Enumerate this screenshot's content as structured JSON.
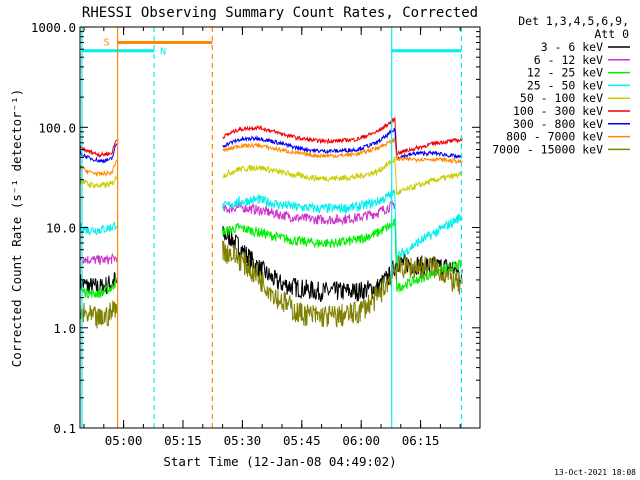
{
  "chart_data": {
    "type": "line",
    "title": "RHESSI Observing Summary Count Rates, Corrected",
    "xlabel": "Start Time (12-Jan-08 04:49:02)",
    "ylabel": "Corrected Count Rate (s⁻¹ detector⁻¹)",
    "x_unit": "minutes after 04:49:02",
    "xlim": [
      0,
      101
    ],
    "ylim": [
      0.1,
      1000
    ],
    "yscale": "log",
    "x_ticks": [
      {
        "t": 11,
        "label": "05:00"
      },
      {
        "t": 26,
        "label": "05:15"
      },
      {
        "t": 41,
        "label": "05:30"
      },
      {
        "t": 56,
        "label": "05:45"
      },
      {
        "t": 71,
        "label": "06:00"
      },
      {
        "t": 86,
        "label": "06:15"
      }
    ],
    "y_ticks": [
      {
        "v": 0.1,
        "label": "0.1"
      },
      {
        "v": 1,
        "label": "1.0"
      },
      {
        "v": 10,
        "label": "10.0"
      },
      {
        "v": 100,
        "label": "100.0"
      },
      {
        "v": 1000,
        "label": "1000.0"
      }
    ],
    "legend_title": [
      "Det 1,3,4,5,6,9,",
      "Att 0"
    ],
    "legend_position": "right",
    "data_gap": [
      9.5,
      36
    ],
    "series": [
      {
        "name": "3 - 6 keV",
        "color": "#000000",
        "jitter": 0.1,
        "x": [
          0,
          2,
          5,
          8,
          8.8,
          9.3,
          36,
          38,
          40,
          45,
          50,
          55,
          60,
          65,
          70,
          75,
          78,
          80,
          82,
          86,
          90,
          94,
          96.5
        ],
        "y": [
          2.8,
          2.6,
          2.5,
          2.8,
          3.0,
          2.8,
          8.5,
          8,
          6.5,
          4,
          2.8,
          2.5,
          2.3,
          2.3,
          2.3,
          2.5,
          3.2,
          4.5,
          4.4,
          4.2,
          4.1,
          4.0,
          3.2
        ]
      },
      {
        "name": "6 - 12 keV",
        "color": "#cc33cc",
        "jitter": 0.05,
        "x": [
          0,
          2,
          5,
          8,
          9.3,
          36,
          40,
          45,
          50,
          55,
          60,
          65,
          70,
          75,
          79.5
        ],
        "y": [
          5,
          4.8,
          4.7,
          4.8,
          5.0,
          15,
          16,
          15,
          13.5,
          12.5,
          12,
          12,
          12.5,
          14,
          17
        ]
      },
      {
        "name": "12 - 25 keV",
        "color": "#00ee00",
        "jitter": 0.05,
        "x": [
          0,
          2,
          5,
          8,
          9.3,
          36,
          40,
          45,
          50,
          55,
          60,
          65,
          70,
          75,
          79.5,
          80,
          85,
          90,
          96.5
        ],
        "y": [
          2.4,
          2.2,
          2.2,
          2.5,
          3.0,
          9,
          10,
          9,
          8,
          7.3,
          7,
          7,
          7.5,
          8.8,
          11,
          2.5,
          3.0,
          3.6,
          4.3
        ]
      },
      {
        "name": "25 - 50 keV",
        "color": "#00eeee",
        "jitter": 0.05,
        "x": [
          0,
          2,
          5,
          8,
          9.3,
          36,
          40,
          45,
          50,
          55,
          60,
          65,
          70,
          75,
          79.5,
          80,
          85,
          90,
          96.5
        ],
        "y": [
          10,
          9.5,
          9.5,
          10,
          11,
          16,
          18,
          19,
          17,
          16,
          15.5,
          15.5,
          16,
          18,
          22,
          5,
          7,
          9,
          13
        ]
      },
      {
        "name": "50 - 100 keV",
        "color": "#cccc00",
        "jitter": 0.03,
        "x": [
          0,
          2,
          5,
          8,
          9.3,
          36,
          40,
          45,
          50,
          55,
          60,
          65,
          70,
          75,
          79.5,
          80,
          85,
          90,
          96.5
        ],
        "y": [
          30,
          27,
          26,
          27,
          32,
          33,
          38,
          40,
          36,
          33,
          31,
          31,
          32,
          36,
          48,
          22,
          26,
          30,
          34
        ]
      },
      {
        "name": "100 - 300 keV",
        "color": "#ee0000",
        "jitter": 0.02,
        "x": [
          0,
          2,
          5,
          8,
          9.3,
          36,
          40,
          45,
          50,
          55,
          60,
          65,
          70,
          75,
          79.5,
          80,
          85,
          90,
          96.5
        ],
        "y": [
          62,
          58,
          53,
          55,
          78,
          80,
          95,
          100,
          88,
          78,
          73,
          73,
          76,
          90,
          120,
          55,
          62,
          70,
          75
        ]
      },
      {
        "name": "300 - 800 keV",
        "color": "#0000ee",
        "jitter": 0.02,
        "x": [
          0,
          2,
          5,
          8,
          9.3,
          36,
          40,
          45,
          50,
          55,
          60,
          65,
          70,
          75,
          79.5,
          80,
          85,
          90,
          96.5
        ],
        "y": [
          55,
          50,
          46,
          48,
          70,
          65,
          75,
          78,
          70,
          62,
          58,
          58,
          60,
          70,
          95,
          50,
          55,
          55,
          50
        ]
      },
      {
        "name": "800 - 7000 keV",
        "color": "#ff8800",
        "jitter": 0.02,
        "x": [
          0,
          2,
          5,
          8,
          9.3,
          36,
          40,
          45,
          50,
          55,
          60,
          65,
          70,
          75,
          79.5,
          80,
          85,
          90,
          96.5
        ],
        "y": [
          40,
          36,
          34,
          35,
          48,
          58,
          65,
          66,
          60,
          55,
          52,
          52,
          54,
          62,
          75,
          48,
          48,
          48,
          45
        ]
      },
      {
        "name": "7000 - 15000 keV",
        "color": "#808000",
        "jitter": 0.12,
        "x": [
          0,
          2,
          5,
          8,
          9.3,
          36,
          40,
          45,
          50,
          55,
          60,
          65,
          70,
          75,
          78,
          80,
          85,
          90,
          96.5
        ],
        "y": [
          1.4,
          1.3,
          1.2,
          1.4,
          1.8,
          6,
          5,
          3.2,
          2.0,
          1.4,
          1.3,
          1.3,
          1.4,
          2.0,
          3.0,
          4,
          4,
          4,
          2.5
        ]
      }
    ],
    "annotations": [
      {
        "type": "span",
        "label": "S",
        "x0": 9.5,
        "x1": 33.4,
        "v": 700,
        "color": "#ff8800"
      },
      {
        "type": "span",
        "label": "N",
        "x0": 0.5,
        "x1": 18.7,
        "v": 580,
        "color": "#00eeee"
      },
      {
        "type": "span",
        "label": "",
        "x0": 78.7,
        "x1": 96.3,
        "v": 580,
        "color": "#00eeee"
      },
      {
        "type": "vline",
        "x": 0.5,
        "color": "#00eeee",
        "style": "solid"
      },
      {
        "type": "vline",
        "x": 9.5,
        "color": "#ff8800",
        "style": "solid"
      },
      {
        "type": "vline",
        "x": 18.7,
        "color": "#00eeee",
        "style": "dashed"
      },
      {
        "type": "vline",
        "x": 33.4,
        "color": "#ff8800",
        "style": "dashed"
      },
      {
        "type": "vline",
        "x": 78.7,
        "color": "#00eeee",
        "style": "solid"
      },
      {
        "type": "vline",
        "x": 96.3,
        "color": "#00eeee",
        "style": "dashed"
      }
    ],
    "grid": false
  },
  "footer_date": "13-Oct-2021 18:08"
}
